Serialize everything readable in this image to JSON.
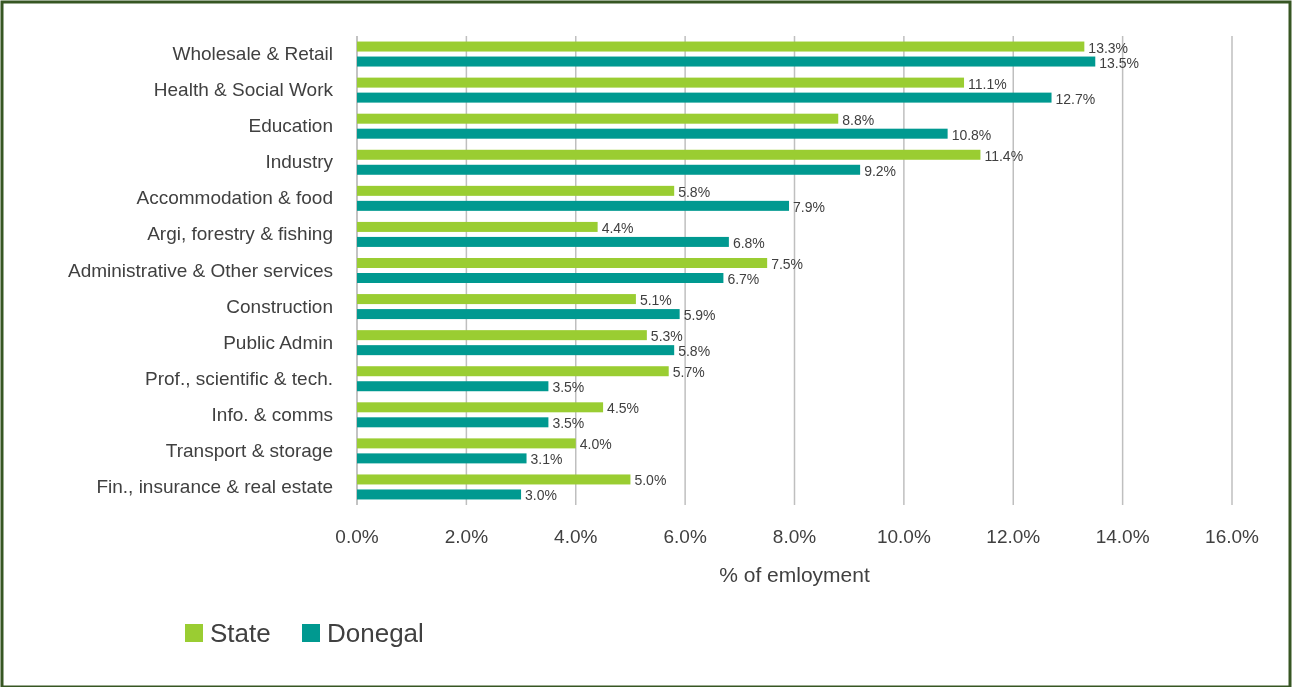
{
  "chart_data": {
    "type": "bar",
    "orientation": "horizontal",
    "xlabel": "% of emloyment",
    "categories": [
      "Wholesale & Retail",
      "Health & Social Work",
      "Education",
      "Industry",
      "Accommodation & food",
      "Argi, forestry & fishing",
      "Administrative & Other services",
      "Construction",
      "Public Admin",
      "Prof., scientific & tech.",
      "Info. & comms",
      "Transport & storage",
      "Fin., insurance & real estate"
    ],
    "series": [
      {
        "name": "State",
        "color": "#9acd32",
        "values": [
          13.3,
          11.1,
          8.8,
          11.4,
          5.8,
          4.4,
          7.5,
          5.1,
          5.3,
          5.7,
          4.5,
          4.0,
          5.0
        ],
        "value_labels": [
          "13.3%",
          "11.1%",
          "8.8%",
          "11.4%",
          "5.8%",
          "4.4%",
          "7.5%",
          "5.1%",
          "5.3%",
          "5.7%",
          "4.5%",
          "4.0%",
          "5.0%"
        ]
      },
      {
        "name": "Donegal",
        "color": "#009990",
        "values": [
          13.5,
          12.7,
          10.8,
          9.2,
          7.9,
          6.8,
          6.7,
          5.9,
          5.8,
          3.5,
          3.5,
          3.1,
          3.0
        ],
        "value_labels": [
          "13.5%",
          "12.7%",
          "10.8%",
          "9.2%",
          "7.9%",
          "6.8%",
          "6.7%",
          "5.9%",
          "5.8%",
          "3.5%",
          "3.5%",
          "3.1%",
          "3.0%"
        ]
      }
    ],
    "xlim": [
      0,
      16
    ],
    "xticks": [
      {
        "value": 0,
        "label": "0.0%"
      },
      {
        "value": 2,
        "label": "2.0%"
      },
      {
        "value": 4,
        "label": "4.0%"
      },
      {
        "value": 6,
        "label": "6.0%"
      },
      {
        "value": 8,
        "label": "8.0%"
      },
      {
        "value": 10,
        "label": "10.0%"
      },
      {
        "value": 12,
        "label": "12.0%"
      },
      {
        "value": 14,
        "label": "14.0%"
      },
      {
        "value": 16,
        "label": "16.0%"
      }
    ],
    "grid": "x",
    "legend": "bottom left"
  }
}
